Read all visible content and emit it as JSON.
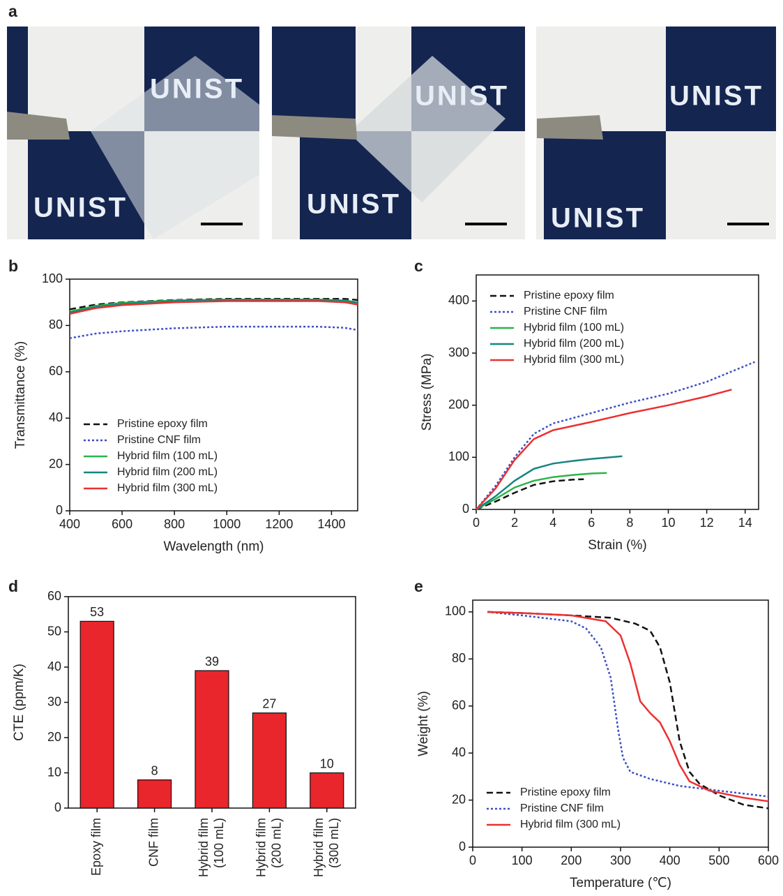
{
  "panel_labels": [
    "a",
    "b",
    "c",
    "d",
    "e"
  ],
  "photo_text": "UNIST",
  "chart_data": [
    {
      "type": "line",
      "xlabel": "Wavelength (nm)",
      "ylabel": "Transmittance (%)",
      "x": [
        400,
        500,
        600,
        800,
        1000,
        1200,
        1350,
        1450,
        1500
      ],
      "xlim": [
        400,
        1500
      ],
      "xticks": [
        400,
        600,
        800,
        1000,
        1200,
        1400
      ],
      "ylim": [
        0,
        100
      ],
      "yticks": [
        0,
        20,
        40,
        60,
        80,
        100
      ],
      "legend": "lower left",
      "series": [
        {
          "name": "Pristine epoxy film",
          "color": "#111111",
          "line_style": "dashed",
          "values": [
            87,
            89,
            90,
            91,
            91.5,
            91.5,
            91.5,
            91.5,
            91
          ]
        },
        {
          "name": "Pristine CNF film",
          "color": "#3b4fc4",
          "line_style": "dotted",
          "values": [
            74.5,
            76.5,
            77.5,
            78.8,
            79.5,
            79.5,
            79.5,
            79,
            78
          ]
        },
        {
          "name": "Hybrid film (100 mL)",
          "color": "#2db34a",
          "line_style": "solid",
          "values": [
            86,
            88.5,
            89.8,
            90.8,
            91.2,
            91.2,
            91.2,
            90.8,
            90
          ]
        },
        {
          "name": "Hybrid film (200 mL)",
          "color": "#16857f",
          "line_style": "solid",
          "values": [
            85.5,
            88,
            89.3,
            90.5,
            91,
            91,
            91,
            90.5,
            89.8
          ]
        },
        {
          "name": "Hybrid film (300 mL)",
          "color": "#ec3030",
          "line_style": "solid",
          "values": [
            85,
            87.5,
            88.8,
            90,
            90.5,
            90.5,
            90.5,
            90,
            89
          ]
        }
      ]
    },
    {
      "type": "line",
      "xlabel": "Strain (%)",
      "ylabel": "Stress (MPa)",
      "xlim": [
        0,
        14.7
      ],
      "xticks": [
        0,
        2,
        4,
        6,
        8,
        10,
        12,
        14
      ],
      "ylim": [
        0,
        450
      ],
      "yticks": [
        0,
        100,
        200,
        300,
        400
      ],
      "legend": "upper left",
      "series": [
        {
          "name": "Pristine epoxy film",
          "color": "#111111",
          "line_style": "dashed",
          "x": [
            0,
            1,
            2,
            3,
            4,
            5,
            5.6
          ],
          "values": [
            0,
            15,
            32,
            47,
            54,
            57,
            58
          ]
        },
        {
          "name": "Pristine CNF film",
          "color": "#3b4fc4",
          "line_style": "dotted",
          "x": [
            0,
            1,
            2,
            3,
            4,
            6,
            8,
            10,
            12,
            14.5
          ],
          "values": [
            0,
            45,
            100,
            145,
            165,
            185,
            205,
            222,
            245,
            283
          ]
        },
        {
          "name": "Hybrid film (100 mL)",
          "color": "#2db34a",
          "line_style": "solid",
          "x": [
            0,
            1,
            2,
            3,
            4,
            5,
            6,
            6.8
          ],
          "values": [
            0,
            20,
            42,
            55,
            62,
            66,
            69,
            70
          ]
        },
        {
          "name": "Hybrid film (200 mL)",
          "color": "#16857f",
          "line_style": "solid",
          "x": [
            0,
            1,
            2,
            3,
            4,
            5,
            6,
            7,
            7.6
          ],
          "values": [
            0,
            25,
            55,
            78,
            88,
            93,
            97,
            100,
            102
          ]
        },
        {
          "name": "Hybrid film (300 mL)",
          "color": "#ec3030",
          "line_style": "solid",
          "x": [
            0,
            1,
            2,
            3,
            4,
            6,
            8,
            10,
            12,
            13.3
          ],
          "values": [
            0,
            40,
            95,
            135,
            152,
            168,
            185,
            200,
            217,
            230
          ]
        }
      ]
    },
    {
      "type": "bar",
      "ylabel": "CTE (ppm/K)",
      "categories": [
        "Epoxy film",
        "CNF film",
        "Hybrid film (100 mL)",
        "Hybrid film (200 mL)",
        "Hybrid film (300 mL)"
      ],
      "values": [
        53,
        8,
        39,
        27,
        10
      ],
      "color": "#e8262b",
      "ylim": [
        0,
        60
      ],
      "yticks": [
        0,
        10,
        20,
        30,
        40,
        50,
        60
      ]
    },
    {
      "type": "line",
      "xlabel": "Temperature (℃)",
      "ylabel": "Weight (%)",
      "xlim": [
        0,
        600
      ],
      "xticks": [
        0,
        100,
        200,
        300,
        400,
        500,
        600
      ],
      "ylim": [
        0,
        105
      ],
      "yticks": [
        0,
        20,
        40,
        60,
        80,
        100
      ],
      "legend": "lower left",
      "series": [
        {
          "name": "Pristine epoxy film",
          "color": "#111111",
          "line_style": "dashed",
          "x": [
            30,
            100,
            200,
            280,
            330,
            360,
            380,
            400,
            420,
            440,
            460,
            500,
            550,
            600
          ],
          "values": [
            100,
            99.5,
            98.5,
            97.5,
            95,
            92,
            85,
            70,
            45,
            32,
            27,
            22,
            18,
            16.5
          ]
        },
        {
          "name": "Pristine CNF film",
          "color": "#3b4fc4",
          "line_style": "dotted",
          "x": [
            30,
            100,
            200,
            230,
            260,
            280,
            295,
            305,
            320,
            360,
            420,
            500,
            600
          ],
          "values": [
            100,
            98.5,
            96,
            93,
            85,
            72,
            50,
            38,
            32,
            29,
            26,
            24,
            21.5
          ]
        },
        {
          "name": "Hybrid film (300 mL)",
          "color": "#ec3030",
          "line_style": "solid",
          "x": [
            30,
            100,
            200,
            270,
            300,
            320,
            340,
            360,
            380,
            400,
            420,
            440,
            480,
            550,
            600
          ],
          "values": [
            100,
            99.5,
            98.5,
            96,
            90,
            78,
            62,
            57,
            53,
            45,
            35,
            28,
            24,
            21,
            19.5
          ]
        }
      ]
    }
  ]
}
